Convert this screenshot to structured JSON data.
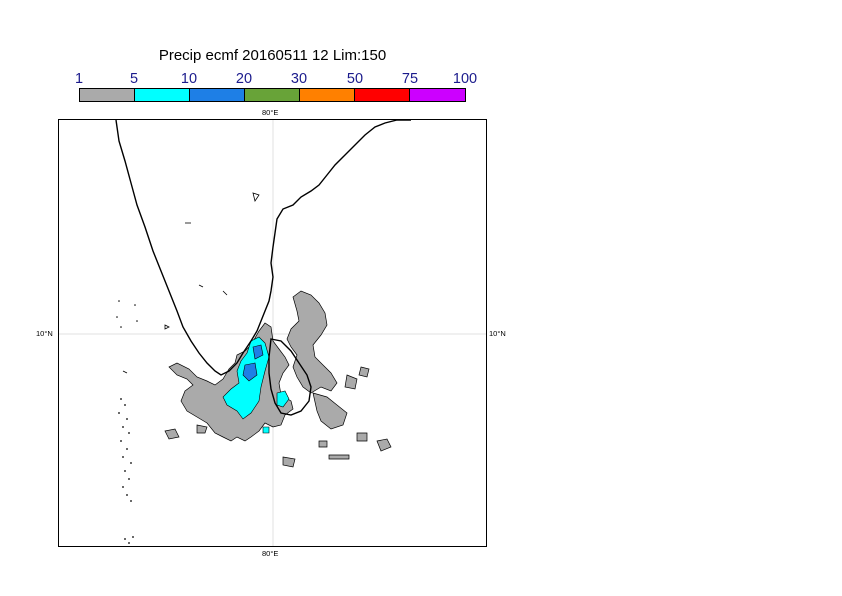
{
  "title": "Precip ecmf 20160511 12 Lim:150",
  "legend": {
    "ticks": [
      "1",
      "5",
      "10",
      "20",
      "30",
      "50",
      "75",
      "100"
    ],
    "colors": [
      "#aaaaaa",
      "#00ffff",
      "#1e7fe6",
      "#68a338",
      "#ff8000",
      "#ff0000",
      "#cc00ff"
    ]
  },
  "map": {
    "lon_label_top": "80°E",
    "lon_label_bottom": "80°E",
    "lat_label_left": "10°N",
    "lat_label_right": "10°N",
    "land_color": "#ffffff",
    "coast_color": "#000000",
    "grid_color": "#d9d9d9"
  }
}
